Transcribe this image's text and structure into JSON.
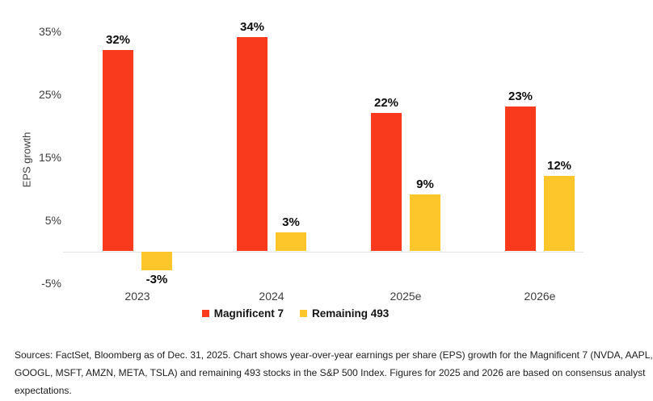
{
  "chart_data": {
    "type": "bar",
    "categories": [
      "2023",
      "2024",
      "2025e",
      "2026e"
    ],
    "series": [
      {
        "name": "Magnificent 7",
        "color": "#F93A1D",
        "values": [
          32,
          34,
          22,
          23
        ]
      },
      {
        "name": "Remaining 493",
        "color": "#FDC62B",
        "values": [
          -3,
          3,
          9,
          12
        ]
      }
    ],
    "value_label_suffix": "%",
    "title": "",
    "xlabel": "",
    "ylabel": "EPS growth",
    "yticks": [
      35,
      25,
      15,
      5,
      -5
    ],
    "ytick_suffix": "%",
    "ylim": [
      -7,
      38
    ],
    "grid": false,
    "legend_position": "bottom",
    "zero_line_color": "#e3e3e3"
  },
  "legend": {
    "items": [
      {
        "label": "Magnificent 7",
        "color": "#F93A1D"
      },
      {
        "label": "Remaining 493",
        "color": "#FDC62B"
      }
    ]
  },
  "footer": {
    "lines": [
      "Sources: FactSet, Bloomberg as of Dec. 31, 2025. Chart shows year-over-year earnings per share (EPS) growth for the Magnificent 7 (NVDA, AAPL,",
      "GOOGL, MSFT, AMZN, META, TSLA) and remaining 493 stocks in the S&P 500 Index. Figures for 2025 and 2026 are based on consensus analyst",
      "expectations."
    ]
  }
}
